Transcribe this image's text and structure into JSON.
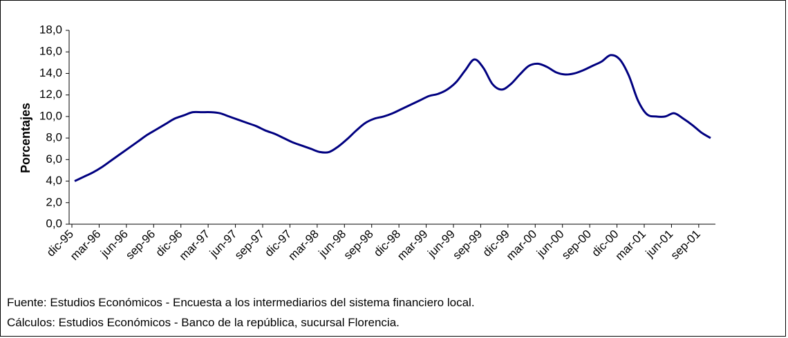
{
  "chart_data": {
    "type": "line",
    "y_label": "Porcentajes",
    "categories": [
      "dic-95",
      null,
      null,
      "mar-96",
      null,
      null,
      "jun-96",
      null,
      null,
      "sep-96",
      null,
      null,
      "dic-96",
      null,
      null,
      "mar-97",
      null,
      null,
      "jun-97",
      null,
      null,
      "sep-97",
      null,
      null,
      "dic-97",
      null,
      null,
      "mar-98",
      null,
      null,
      "jun-98",
      null,
      null,
      "sep-98",
      null,
      null,
      "dic-98",
      null,
      null,
      "mar-99",
      null,
      null,
      "jun-99",
      null,
      null,
      "sep-99",
      null,
      null,
      "dic-99",
      null,
      null,
      "mar-00",
      null,
      null,
      "jun-00",
      null,
      null,
      "sep-00",
      null,
      null,
      "dic-00",
      null,
      null,
      "mar-01",
      null,
      null,
      "jun-01",
      null,
      null,
      "sep-01",
      null
    ],
    "series": [
      {
        "color": "#000080",
        "values": [
          4.0,
          4.4,
          4.8,
          5.3,
          5.9,
          6.5,
          7.1,
          7.7,
          8.3,
          8.8,
          9.3,
          9.8,
          10.1,
          10.4,
          10.4,
          10.4,
          10.3,
          10.0,
          9.7,
          9.4,
          9.1,
          8.7,
          8.4,
          8.0,
          7.6,
          7.3,
          7.0,
          6.7,
          6.7,
          7.2,
          7.9,
          8.7,
          9.4,
          9.8,
          10.0,
          10.3,
          10.7,
          11.1,
          11.5,
          11.9,
          12.1,
          12.5,
          13.2,
          14.3,
          15.3,
          14.5,
          13.0,
          12.5,
          13.0,
          13.9,
          14.7,
          14.9,
          14.6,
          14.1,
          13.9,
          14.0,
          14.3,
          14.7,
          15.1,
          15.7,
          15.3,
          13.8,
          11.5,
          10.2,
          10.0,
          10.0,
          10.3,
          9.8,
          9.2,
          8.5,
          8.0
        ]
      }
    ],
    "ylim": [
      0,
      18
    ],
    "yticks": [
      {
        "value": 0,
        "label": "0,0"
      },
      {
        "value": 2,
        "label": "2,0"
      },
      {
        "value": 4,
        "label": "4,0"
      },
      {
        "value": 6,
        "label": "6,0"
      },
      {
        "value": 8,
        "label": "8,0"
      },
      {
        "value": 10,
        "label": "10,0"
      },
      {
        "value": 12,
        "label": "12,0"
      },
      {
        "value": 14,
        "label": "14,0"
      },
      {
        "value": 16,
        "label": "16,0"
      },
      {
        "value": 18,
        "label": "18,0"
      }
    ],
    "grid": false,
    "notes": [
      "Fuente:  Estudios Económicos - Encuesta a los intermediarios del sistema financiero local.",
      "Cálculos:  Estudios Económicos - Banco de la república, sucursal Florencia."
    ]
  }
}
